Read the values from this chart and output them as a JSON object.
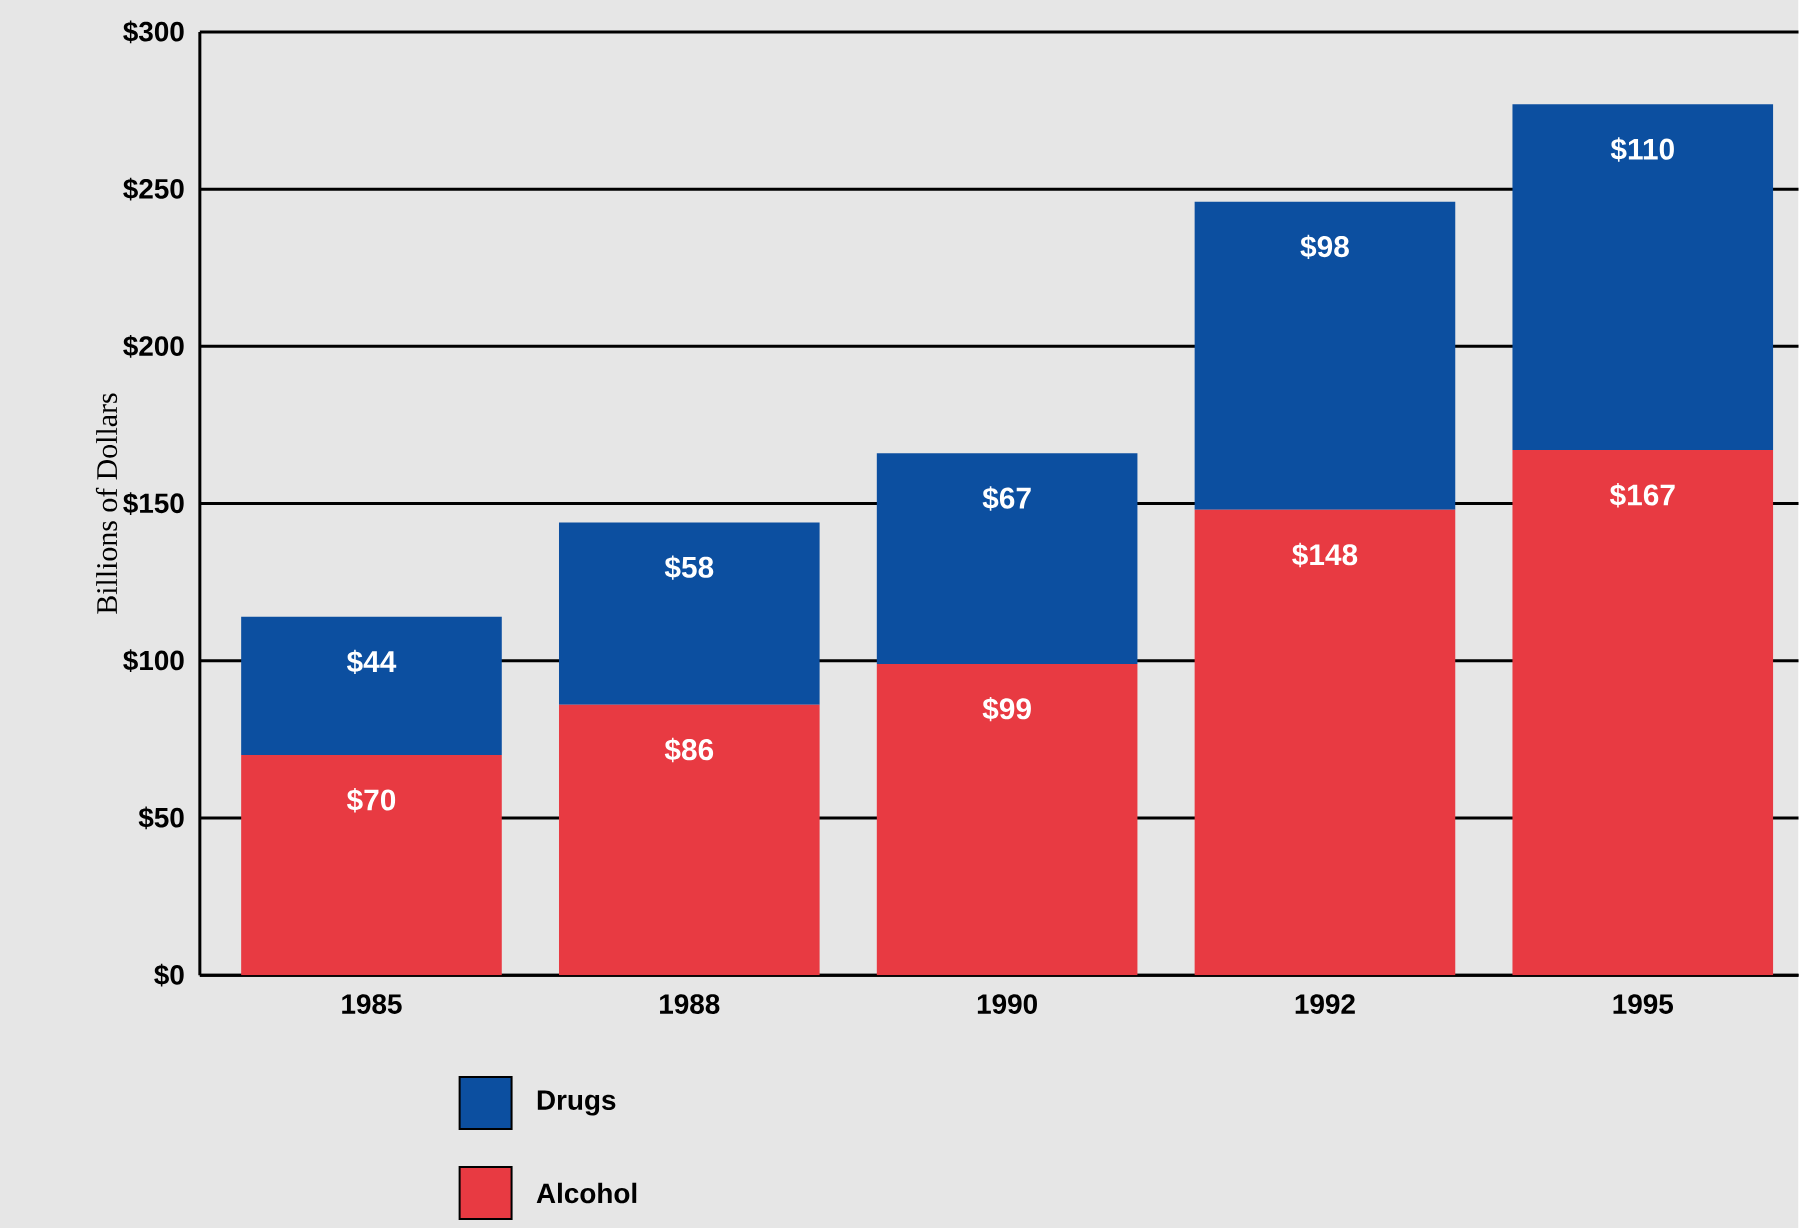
{
  "chart_data": {
    "type": "bar",
    "stacked": true,
    "ylabel": "Billions of Dollars",
    "categories": [
      "1985",
      "1988",
      "1990",
      "1992",
      "1995"
    ],
    "series": [
      {
        "name": "Alcohol",
        "color": "#e83a42",
        "values": [
          70,
          86,
          99,
          148,
          167
        ],
        "value_labels": [
          "$70",
          "$86",
          "$99",
          "$148",
          "$167"
        ]
      },
      {
        "name": "Drugs",
        "color": "#0c4fa0",
        "values": [
          44,
          58,
          67,
          98,
          110
        ],
        "value_labels": [
          "$44",
          "$58",
          "$67",
          "$98",
          "$110"
        ]
      }
    ],
    "ylim": [
      0,
      300
    ],
    "yticks": [
      {
        "value": 0,
        "label": "$0"
      },
      {
        "value": 50,
        "label": "$50"
      },
      {
        "value": 100,
        "label": "$100"
      },
      {
        "value": 150,
        "label": "$150"
      },
      {
        "value": 200,
        "label": "$200"
      },
      {
        "value": 250,
        "label": "$250"
      },
      {
        "value": 300,
        "label": "$300"
      }
    ],
    "grid": "y",
    "legend": "bottom"
  }
}
